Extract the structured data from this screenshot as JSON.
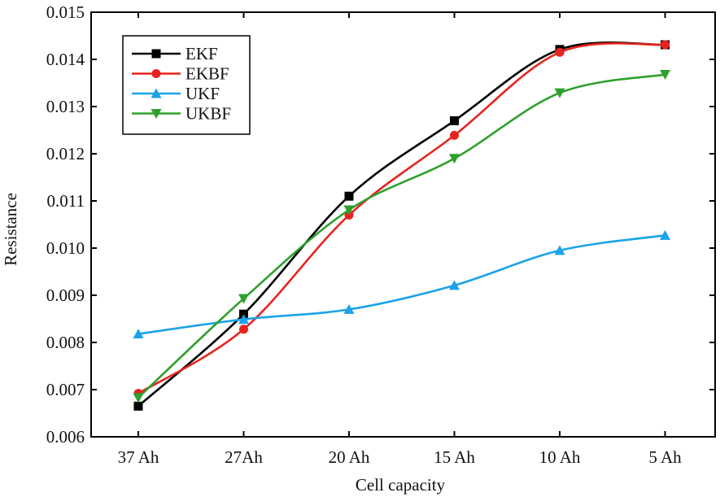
{
  "chart_data": {
    "type": "line",
    "title": "",
    "xlabel": "Cell capacity",
    "ylabel": "Resistance",
    "categories": [
      "37 Ah",
      "27Ah",
      "20 Ah",
      "15 Ah",
      "10 Ah",
      "5 Ah"
    ],
    "ylim": [
      0.006,
      0.015
    ],
    "yticks": [
      "0.006",
      "0.007",
      "0.008",
      "0.009",
      "0.010",
      "0.011",
      "0.012",
      "0.013",
      "0.014",
      "0.015"
    ],
    "grid": false,
    "legend": "top-left",
    "series": [
      {
        "name": "EKF",
        "color": "#000000",
        "marker": "square",
        "values": [
          0.00665,
          0.0086,
          0.0111,
          0.0127,
          0.01421,
          0.01431
        ]
      },
      {
        "name": "EKBF",
        "color": "#e8231f",
        "marker": "circle",
        "values": [
          0.00692,
          0.00828,
          0.0107,
          0.01239,
          0.01415,
          0.01431
        ]
      },
      {
        "name": "UKF",
        "color": "#1aa3e8",
        "marker": "triangle-up",
        "values": [
          0.00818,
          0.00849,
          0.0087,
          0.00921,
          0.00995,
          0.01027
        ]
      },
      {
        "name": "UKBF",
        "color": "#2ea02c",
        "marker": "triangle-down",
        "values": [
          0.00683,
          0.00893,
          0.01081,
          0.0119,
          0.01329,
          0.01368
        ]
      }
    ]
  }
}
